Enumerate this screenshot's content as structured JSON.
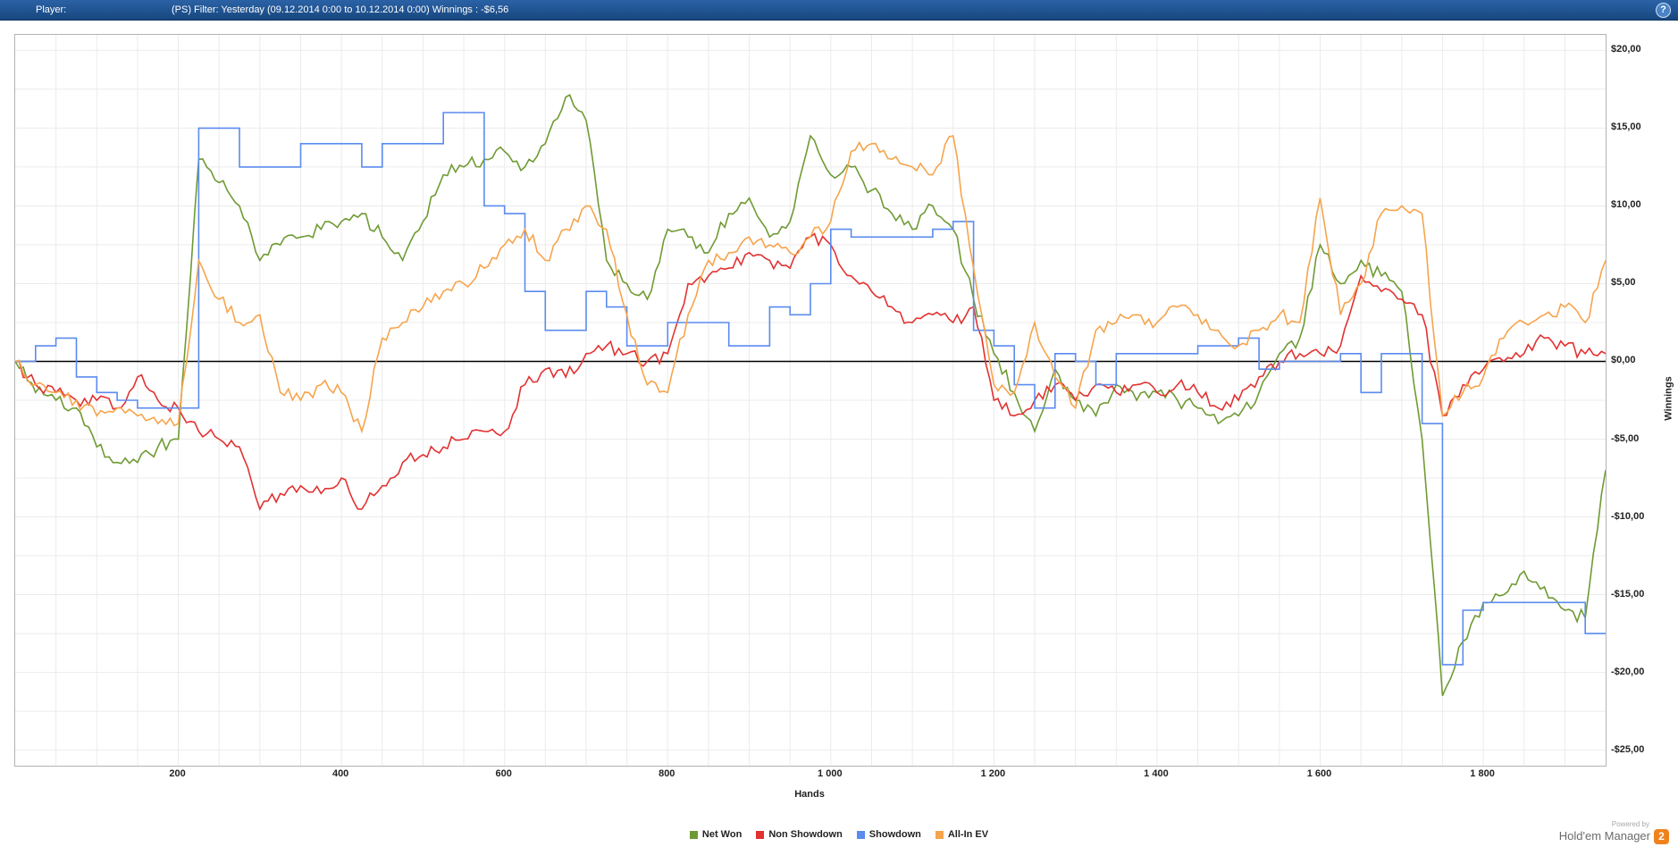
{
  "titlebar": {
    "player_label": "Player:",
    "filter_text": "(PS) Filter: Yesterday (09.12.2014 0:00 to 10.12.2014 0:00) Winnings : -$6,56",
    "help_icon": "?"
  },
  "chart_data": {
    "type": "line",
    "title": "",
    "xlabel": "Hands",
    "ylabel": "Winnings",
    "xlim": [
      0,
      1950
    ],
    "ylim": [
      -26,
      21
    ],
    "x_ticks": [
      200,
      400,
      600,
      800,
      1000,
      1200,
      1400,
      1600,
      1800
    ],
    "x_tick_labels": [
      "200",
      "400",
      "600",
      "800",
      "1 000",
      "1 200",
      "1 400",
      "1 600",
      "1 800"
    ],
    "y_ticks": [
      20,
      15,
      10,
      5,
      0,
      -5,
      -10,
      -15,
      -20,
      -25
    ],
    "y_tick_labels": [
      "$20,00",
      "$15,00",
      "$10,00",
      "$5,00",
      "$0,00",
      "-$5,00",
      "-$10,00",
      "-$15,00",
      "-$20,00",
      "-$25,00"
    ],
    "grid": {
      "x_step": 50,
      "y_step": 2.5,
      "color": "#ebebeb"
    },
    "zero_line_color": "#000000",
    "legend_position": "bottom",
    "x": [
      0,
      25,
      50,
      75,
      100,
      125,
      150,
      175,
      200,
      225,
      250,
      275,
      300,
      325,
      350,
      375,
      400,
      425,
      450,
      475,
      500,
      525,
      550,
      575,
      600,
      625,
      650,
      675,
      700,
      725,
      750,
      775,
      800,
      825,
      850,
      875,
      900,
      925,
      950,
      975,
      1000,
      1025,
      1050,
      1075,
      1100,
      1125,
      1150,
      1175,
      1200,
      1225,
      1250,
      1275,
      1300,
      1325,
      1350,
      1375,
      1400,
      1425,
      1450,
      1475,
      1500,
      1525,
      1550,
      1575,
      1600,
      1625,
      1650,
      1675,
      1700,
      1725,
      1750,
      1775,
      1800,
      1825,
      1850,
      1875,
      1900,
      1925,
      1950
    ],
    "series": [
      {
        "name": "Net Won",
        "color": "#6f9a33",
        "interpolation": "linear",
        "values": [
          0,
          -2,
          -2.5,
          -3,
          -5.5,
          -6.5,
          -6.5,
          -5.5,
          -5,
          13,
          11.5,
          10,
          6.5,
          7.5,
          8,
          8.5,
          9,
          9.5,
          8,
          6.5,
          9,
          12,
          12.5,
          13,
          13.5,
          12.5,
          14,
          17,
          15.5,
          6.5,
          5,
          4,
          8.5,
          8,
          7,
          9.5,
          10.5,
          8,
          9,
          14.5,
          12,
          12.5,
          11,
          9.5,
          8.5,
          10,
          8.5,
          4,
          0.5,
          -2,
          -4.5,
          -0.5,
          -2.5,
          -3.5,
          -1.5,
          -2.5,
          -2,
          -2.5,
          -3,
          -4,
          -3.5,
          -2,
          0.5,
          1.5,
          7.5,
          5,
          6.5,
          5.5,
          4.5,
          -5,
          -21.5,
          -18,
          -15.5,
          -15,
          -13.5,
          -14.5,
          -16,
          -16.5,
          -7
        ]
      },
      {
        "name": "Non Showdown",
        "color": "#e23131",
        "interpolation": "linear",
        "values": [
          0,
          -1.5,
          -2,
          -2.5,
          -2.5,
          -3,
          -1,
          -2.5,
          -3,
          -4.5,
          -5,
          -5.5,
          -9.5,
          -8.5,
          -8,
          -8.5,
          -7.5,
          -9.5,
          -8,
          -6.5,
          -6,
          -5.5,
          -5,
          -4.5,
          -4.5,
          -1.5,
          -0.5,
          -1,
          0.5,
          1,
          0.5,
          0,
          0.5,
          5,
          5.5,
          6,
          7,
          6.5,
          6,
          8,
          7.5,
          5.5,
          4.5,
          3.5,
          2.5,
          3,
          2.5,
          3.5,
          -2.5,
          -3.5,
          -2.5,
          -1.5,
          -2.5,
          -1.5,
          -2,
          -1.5,
          -2,
          -1.5,
          -2,
          -3,
          -2.5,
          -1,
          0,
          0.5,
          0.5,
          1,
          5.5,
          4.5,
          4,
          3,
          -3.5,
          -1.5,
          -0.5,
          0,
          0.5,
          1.5,
          1,
          0.5,
          0.5
        ]
      },
      {
        "name": "Showdown",
        "color": "#5b8bef",
        "interpolation": "step",
        "values": [
          0,
          1,
          1.5,
          -1,
          -2,
          -2.5,
          -3,
          -3,
          -3,
          15,
          15,
          12.5,
          12.5,
          12.5,
          14,
          14,
          14,
          12.5,
          14,
          14,
          14,
          16,
          16,
          10,
          9.5,
          4.5,
          2,
          2,
          4.5,
          3.5,
          1,
          1,
          2.5,
          2.5,
          2.5,
          1,
          1,
          3.5,
          3,
          5,
          8.5,
          8,
          8,
          8,
          8,
          8.5,
          9,
          2,
          1,
          -1.5,
          -3,
          0.5,
          0,
          -1.5,
          0.5,
          0.5,
          0.5,
          0.5,
          1,
          1,
          1.5,
          -0.5,
          0,
          0,
          0,
          0.5,
          -2,
          0.5,
          0.5,
          -4,
          -19.5,
          -16,
          -15.5,
          -15.5,
          -15.5,
          -15.5,
          -15.5,
          -17.5,
          -17.5
        ]
      },
      {
        "name": "All-In EV",
        "color": "#f6a44c",
        "interpolation": "linear",
        "values": [
          0,
          -1.5,
          -2,
          -2.5,
          -3.5,
          -3,
          -3.5,
          -4,
          -4,
          6.5,
          4,
          2.5,
          3,
          -2,
          -2.5,
          -1.5,
          -2,
          -4.5,
          1.5,
          2.5,
          3.5,
          4.5,
          5,
          6,
          7.5,
          8.5,
          6.5,
          8.5,
          10,
          8.5,
          3,
          -1.5,
          -2,
          3,
          6.5,
          7,
          8,
          7.5,
          7,
          8,
          9,
          13.5,
          14,
          13,
          12.5,
          12,
          14.5,
          6,
          -1.5,
          -2,
          2.5,
          -1,
          -3,
          2,
          2.5,
          3,
          2.5,
          3.5,
          3,
          2,
          1,
          2,
          3,
          2.5,
          10.5,
          3,
          5,
          9.5,
          10,
          9.5,
          -3.5,
          -2,
          -1,
          1.5,
          2.5,
          3,
          3.5,
          2.5,
          6.5
        ]
      }
    ]
  },
  "footer": {
    "powered_by": "Powered by",
    "brand": "Hold'em Manager",
    "brand_badge": "2"
  }
}
